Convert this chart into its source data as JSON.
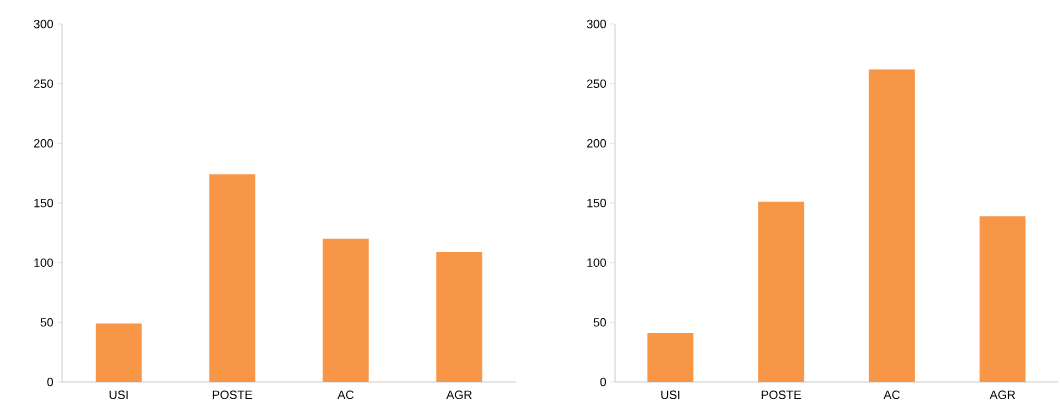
{
  "chart_data": [
    {
      "type": "bar",
      "categories": [
        "USI",
        "POSTE",
        "AC",
        "AGR"
      ],
      "values": [
        49,
        174,
        120,
        109
      ],
      "color": "#f79646",
      "ylim": [
        0,
        300
      ],
      "yticks": [
        0,
        50,
        100,
        150,
        200,
        250,
        300
      ]
    },
    {
      "type": "bar",
      "categories": [
        "USI",
        "POSTE",
        "AC",
        "AGR"
      ],
      "values": [
        41,
        151,
        262,
        139
      ],
      "color": "#f79646",
      "ylim": [
        0,
        300
      ],
      "yticks": [
        0,
        50,
        100,
        150,
        200,
        250,
        300
      ]
    }
  ]
}
